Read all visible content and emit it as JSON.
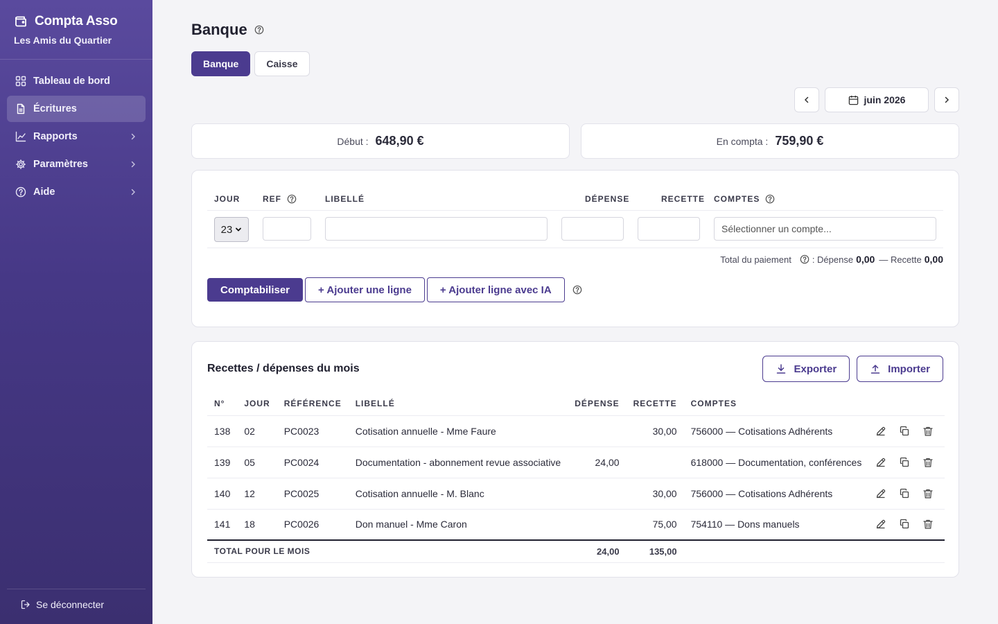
{
  "app": {
    "name": "Compta Asso",
    "organization": "Les Amis du Quartier"
  },
  "sidebar": {
    "items": [
      {
        "label": "Tableau de bord",
        "icon": "dashboard-icon"
      },
      {
        "label": "Écritures",
        "icon": "document-icon"
      },
      {
        "label": "Rapports",
        "icon": "chart-line-icon"
      },
      {
        "label": "Paramètres",
        "icon": "gear-icon"
      },
      {
        "label": "Aide",
        "icon": "help-circle-icon"
      }
    ],
    "active": "Écritures",
    "logout_label": "Se déconnecter"
  },
  "page": {
    "title": "Banque",
    "tabs": [
      {
        "label": "Banque",
        "active": true
      },
      {
        "label": "Caisse",
        "active": false
      }
    ],
    "month": "juin 2026"
  },
  "balances": {
    "start_label": "Début :",
    "start_value": "648,90 €",
    "current_label": "En compta :",
    "current_value": "759,90 €"
  },
  "entry_form": {
    "headers": {
      "day": "Jour",
      "ref": "Ref",
      "label": "Libellé",
      "expense": "Dépense",
      "income": "Recette",
      "accounts": "Comptes"
    },
    "day_value": "23",
    "account_placeholder": "Sélectionner un compte...",
    "payment_total_label": "Total du paiement",
    "payment_expense_label": ": Dépense",
    "payment_expense_value": "0,00",
    "payment_income_label": "— Recette",
    "payment_income_value": "0,00",
    "submit_label": "Comptabiliser",
    "add_line_label": "+ Ajouter une ligne",
    "add_ai_label": "+ Ajouter ligne avec IA"
  },
  "month_list": {
    "title": "Recettes / dépenses du mois",
    "export_label": "Exporter",
    "import_label": "Importer",
    "columns": [
      "N°",
      "Jour",
      "Référence",
      "Libellé",
      "Dépense",
      "Recette",
      "Comptes"
    ],
    "rows": [
      {
        "num": "138",
        "day": "02",
        "ref": "PC0023",
        "label": "Cotisation annuelle - Mme Faure",
        "expense": "",
        "income": "30,00",
        "account": "756000 — Cotisations Adhérents"
      },
      {
        "num": "139",
        "day": "05",
        "ref": "PC0024",
        "label": "Documentation - abonnement revue associative",
        "expense": "24,00",
        "income": "",
        "account": "618000 — Documentation, conférences"
      },
      {
        "num": "140",
        "day": "12",
        "ref": "PC0025",
        "label": "Cotisation annuelle - M. Blanc",
        "expense": "",
        "income": "30,00",
        "account": "756000 — Cotisations Adhérents"
      },
      {
        "num": "141",
        "day": "18",
        "ref": "PC0026",
        "label": "Don manuel - Mme Caron",
        "expense": "",
        "income": "75,00",
        "account": "754110 — Dons manuels"
      }
    ],
    "total_label": "Total pour le mois",
    "total_expense": "24,00",
    "total_income": "135,00"
  },
  "colors": {
    "accent": "#4b3b8f",
    "sidebar_top": "#5a4a9e",
    "sidebar_bottom": "#3b2f70"
  }
}
